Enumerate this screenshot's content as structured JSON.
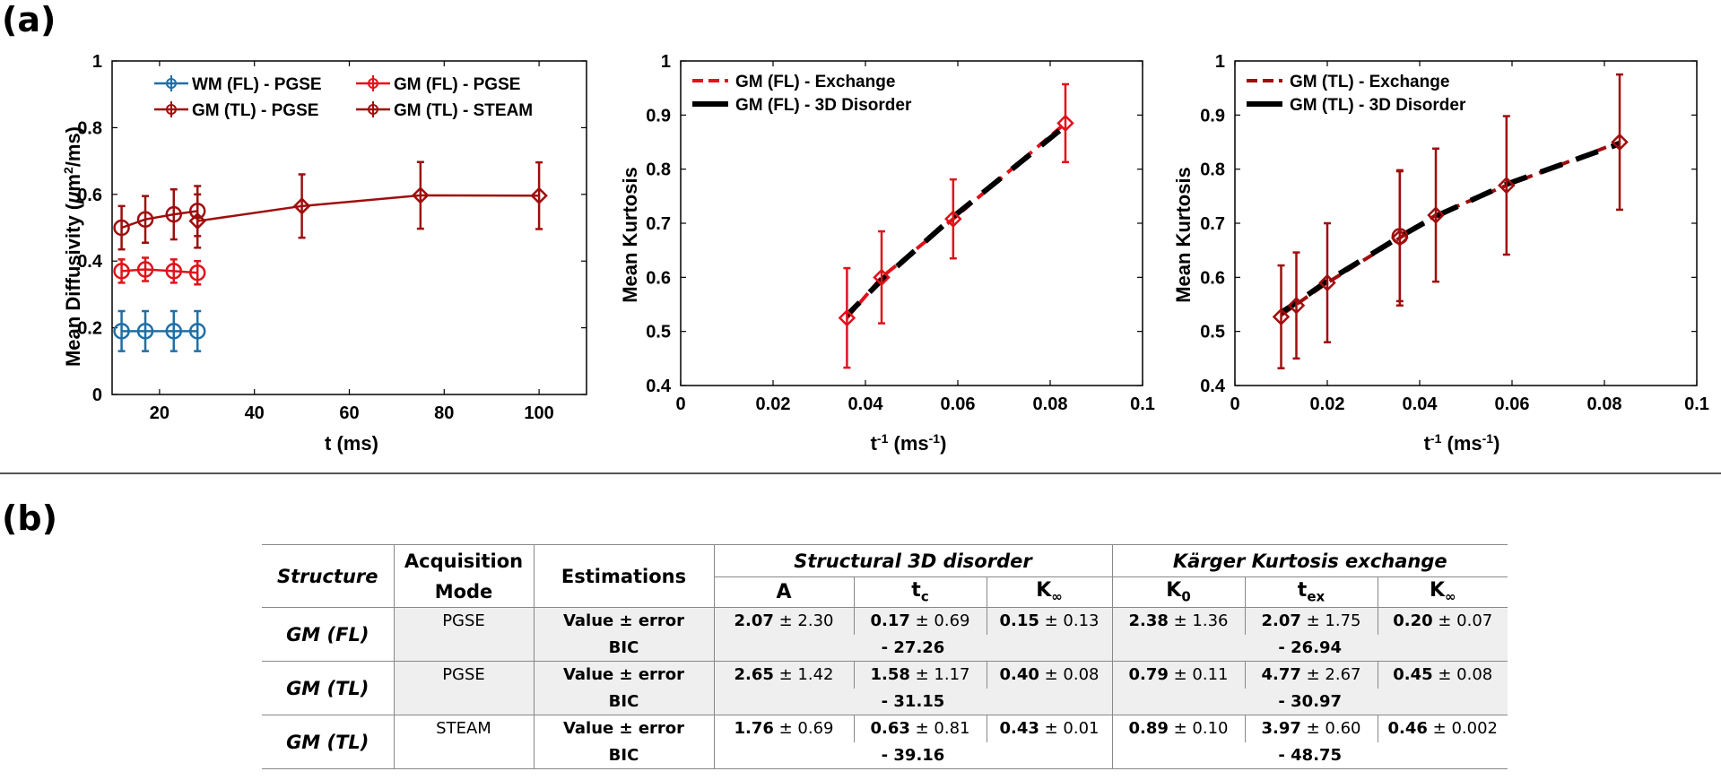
{
  "panel_labels": {
    "a": "(a)",
    "b": "(b)"
  },
  "chart_data": [
    {
      "type": "line",
      "title": "",
      "xlabel": "t (ms)",
      "ylabel": "Mean Diffusivity (μm²/ms)",
      "ylabel_prefix": "Mean Diffusivity (",
      "ylabel_mu": "μ",
      "ylabel_unit": "m",
      "ylabel_sup": "2",
      "ylabel_suffix": "/ms)",
      "xlim": [
        10,
        110
      ],
      "ylim": [
        0,
        1
      ],
      "xticks": [
        20,
        40,
        60,
        80,
        100
      ],
      "yticks": [
        0,
        0.2,
        0.4,
        0.6,
        0.8,
        1
      ],
      "legend": [
        "WM (FL) - PGSE",
        "GM (FL) - PGSE",
        "GM (TL) - PGSE",
        "GM (TL) - STEAM"
      ],
      "series": [
        {
          "name": "WM (FL) - PGSE",
          "color": "#1f6fa6",
          "marker": "circle",
          "x": [
            12,
            17,
            23,
            28
          ],
          "y": [
            0.19,
            0.19,
            0.19,
            0.19
          ],
          "err": [
            0.06,
            0.06,
            0.06,
            0.06
          ]
        },
        {
          "name": "GM (FL) - PGSE",
          "color": "#e0121a",
          "marker": "circle",
          "x": [
            12,
            17,
            23,
            28
          ],
          "y": [
            0.37,
            0.375,
            0.37,
            0.365
          ],
          "err": [
            0.035,
            0.035,
            0.035,
            0.035
          ]
        },
        {
          "name": "GM (TL) - PGSE",
          "color": "#9e0e0e",
          "marker": "circle",
          "x": [
            12,
            17,
            23,
            28
          ],
          "y": [
            0.5,
            0.525,
            0.54,
            0.55
          ],
          "err": [
            0.065,
            0.07,
            0.075,
            0.075
          ]
        },
        {
          "name": "GM (TL) - STEAM",
          "color": "#9e0e0e",
          "marker": "diamond",
          "x": [
            28,
            50,
            75,
            100
          ],
          "y": [
            0.52,
            0.565,
            0.597,
            0.596
          ],
          "err": [
            0.08,
            0.095,
            0.1,
            0.1
          ]
        }
      ]
    },
    {
      "type": "line",
      "title": "",
      "xlabel": "t⁻¹ (ms⁻¹)",
      "ylabel": "Mean Kurtosis",
      "xlim": [
        0,
        0.1
      ],
      "ylim": [
        0.4,
        1
      ],
      "xticks": [
        0,
        0.02,
        0.04,
        0.06,
        0.08,
        0.1
      ],
      "yticks": [
        0.4,
        0.5,
        0.6,
        0.7,
        0.8,
        0.9,
        1
      ],
      "legend": [
        "GM (FL) - Exchange",
        "GM (FL) - 3D Disorder"
      ],
      "points": {
        "color": "#e0121a",
        "x": [
          0.036,
          0.0435,
          0.059,
          0.0833
        ],
        "y": [
          0.525,
          0.6,
          0.708,
          0.885
        ],
        "err": [
          0.092,
          0.085,
          0.073,
          0.072
        ]
      },
      "fits": [
        {
          "name": "GM (FL) - Exchange",
          "color": "#e0121a",
          "x": [
            0.036,
            0.0435,
            0.059,
            0.0833
          ],
          "y": [
            0.525,
            0.6,
            0.708,
            0.885
          ]
        },
        {
          "name": "GM (FL) - 3D Disorder",
          "color": "#000000",
          "x": [
            0.036,
            0.0435,
            0.059,
            0.0833
          ],
          "y": [
            0.53,
            0.595,
            0.712,
            0.88
          ]
        }
      ]
    },
    {
      "type": "line",
      "title": "",
      "xlabel": "t⁻¹ (ms⁻¹)",
      "ylabel": "Mean Kurtosis",
      "xlim": [
        0,
        0.1
      ],
      "ylim": [
        0.4,
        1
      ],
      "xticks": [
        0,
        0.02,
        0.04,
        0.06,
        0.08,
        0.1
      ],
      "yticks": [
        0.4,
        0.5,
        0.6,
        0.7,
        0.8,
        0.9,
        1
      ],
      "legend": [
        "GM (TL) - Exchange",
        "GM (TL) - 3D Disorder"
      ],
      "points": {
        "color": "#9e0e0e",
        "x": [
          0.01,
          0.0133,
          0.02,
          0.0357,
          0.0435,
          0.0588,
          0.0833
        ],
        "y": [
          0.527,
          0.548,
          0.59,
          0.673,
          0.715,
          0.77,
          0.85
        ],
        "err": [
          0.095,
          0.098,
          0.11,
          0.125,
          0.123,
          0.128,
          0.125
        ]
      },
      "points_alt": {
        "x": [
          0.0357
        ],
        "y": [
          0.676
        ],
        "err": [
          0.12
        ]
      },
      "fits": [
        {
          "name": "GM (TL) - Exchange",
          "color": "#9e0e0e",
          "x": [
            0.01,
            0.0133,
            0.02,
            0.0357,
            0.0435,
            0.0588,
            0.0833
          ],
          "y": [
            0.53,
            0.55,
            0.59,
            0.673,
            0.715,
            0.77,
            0.85
          ]
        },
        {
          "name": "GM (TL) - 3D Disorder",
          "color": "#000000",
          "x": [
            0.01,
            0.0133,
            0.02,
            0.0357,
            0.0435,
            0.0588,
            0.0833
          ],
          "y": [
            0.535,
            0.553,
            0.593,
            0.675,
            0.713,
            0.772,
            0.847
          ]
        }
      ]
    }
  ],
  "table": {
    "headers": {
      "structure": "Structure",
      "acq_line1": "Acquisition",
      "acq_line2": "Mode",
      "estimations": "Estimations",
      "group1": "Structural 3D disorder",
      "group2_pre": "K",
      "group2_a": "ä",
      "group2_post": "rger Kurtosis exchange",
      "A": "A",
      "tc_base": "t",
      "tc_sub": "c",
      "kinf1_base": "K",
      "kinf1_sub": "∞",
      "k0_base": "K",
      "k0_sub": "0",
      "tex_base": "t",
      "tex_sub": "ex",
      "kinf2_base": "K",
      "kinf2_sub": "∞"
    },
    "rows": [
      {
        "structure": "GM (FL)",
        "mode": "PGSE",
        "est1": "Value ± error",
        "est2": "BIC",
        "cells": [
          [
            "2.07",
            "± 2.30"
          ],
          [
            "0.17",
            "± 0.69"
          ],
          [
            "0.15",
            "± 0.13"
          ],
          [
            "2.38",
            "± 1.36"
          ],
          [
            "2.07",
            "± 1.75"
          ],
          [
            "0.20",
            "± 0.07"
          ]
        ],
        "bic1": "- 27.26",
        "bic2": "- 26.94"
      },
      {
        "structure": "GM (TL)",
        "mode": "PGSE",
        "est1": "Value ± error",
        "est2": "BIC",
        "cells": [
          [
            "2.65",
            "± 1.42"
          ],
          [
            "1.58",
            "± 1.17"
          ],
          [
            "0.40",
            "± 0.08"
          ],
          [
            "0.79",
            "± 0.11"
          ],
          [
            "4.77",
            "± 2.67"
          ],
          [
            "0.45",
            "± 0.08"
          ]
        ],
        "bic1": "- 31.15",
        "bic2": "- 30.97"
      },
      {
        "structure": "GM (TL)",
        "mode": "STEAM",
        "est1": "Value ± error",
        "est2": "BIC",
        "cells": [
          [
            "1.76",
            "± 0.69"
          ],
          [
            "0.63",
            "± 0.81"
          ],
          [
            "0.43",
            "± 0.01"
          ],
          [
            "0.89",
            "± 0.10"
          ],
          [
            "3.97",
            "± 0.60"
          ],
          [
            "0.46",
            "± 0.002"
          ]
        ],
        "bic1": "- 39.16",
        "bic2": "- 48.75"
      }
    ]
  }
}
